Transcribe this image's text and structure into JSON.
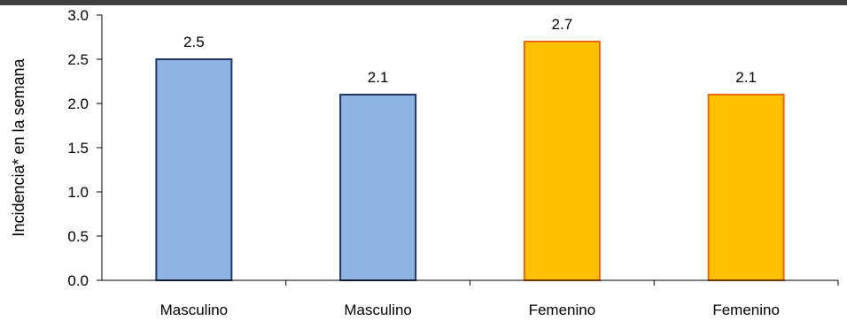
{
  "chart_data": {
    "type": "bar",
    "categories": [
      "Masculino",
      "Masculino",
      "Femenino",
      "Femenino"
    ],
    "values": [
      2.5,
      2.1,
      2.7,
      2.1
    ],
    "data_labels": [
      "2.5",
      "2.1",
      "2.7",
      "2.1"
    ],
    "ylabel": "Incidencia* en la semana",
    "xlabel": "",
    "ylim": [
      0,
      3.0
    ],
    "yticks": [
      "0.0",
      "0.5",
      "1.0",
      "1.5",
      "2.0",
      "2.5",
      "3.0"
    ],
    "grid": false,
    "legend": "none",
    "colors": {
      "masculino_fill": "#8EB4E3",
      "masculino_stroke": "#1F3864",
      "femenino_fill": "#FFC000",
      "femenino_stroke": "#E46C0A",
      "axis": "#000000",
      "top_border": "#404040"
    }
  }
}
